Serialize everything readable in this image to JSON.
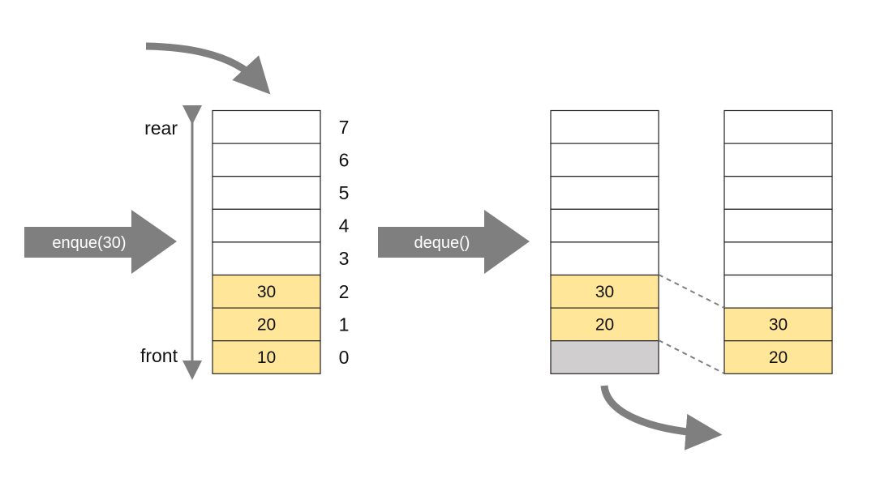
{
  "colors": {
    "filled_cell": "#FFE699",
    "dequeued_cell": "#D0CECE",
    "empty_cell": "#FFFFFF",
    "arrow": "#7F7F7F",
    "cell_border": "#222222",
    "connector": "#7F7F7F"
  },
  "enqueue": {
    "label": "enque(30)",
    "rear_label": "rear",
    "front_label": "front",
    "indices": [
      "7",
      "6",
      "5",
      "4",
      "3",
      "2",
      "1",
      "0"
    ],
    "cells_top_to_bottom": [
      {
        "value": "",
        "state": "empty"
      },
      {
        "value": "",
        "state": "empty"
      },
      {
        "value": "",
        "state": "empty"
      },
      {
        "value": "",
        "state": "empty"
      },
      {
        "value": "",
        "state": "empty"
      },
      {
        "value": "30",
        "state": "filled"
      },
      {
        "value": "20",
        "state": "filled"
      },
      {
        "value": "10",
        "state": "filled"
      }
    ]
  },
  "dequeue": {
    "label": "deque()",
    "before_cells_top_to_bottom": [
      {
        "value": "",
        "state": "empty"
      },
      {
        "value": "",
        "state": "empty"
      },
      {
        "value": "",
        "state": "empty"
      },
      {
        "value": "",
        "state": "empty"
      },
      {
        "value": "",
        "state": "empty"
      },
      {
        "value": "30",
        "state": "filled"
      },
      {
        "value": "20",
        "state": "filled"
      },
      {
        "value": "",
        "state": "dequeued"
      }
    ],
    "after_cells_top_to_bottom": [
      {
        "value": "",
        "state": "empty"
      },
      {
        "value": "",
        "state": "empty"
      },
      {
        "value": "",
        "state": "empty"
      },
      {
        "value": "",
        "state": "empty"
      },
      {
        "value": "",
        "state": "empty"
      },
      {
        "value": "",
        "state": "empty"
      },
      {
        "value": "30",
        "state": "filled"
      },
      {
        "value": "20",
        "state": "filled"
      }
    ]
  }
}
